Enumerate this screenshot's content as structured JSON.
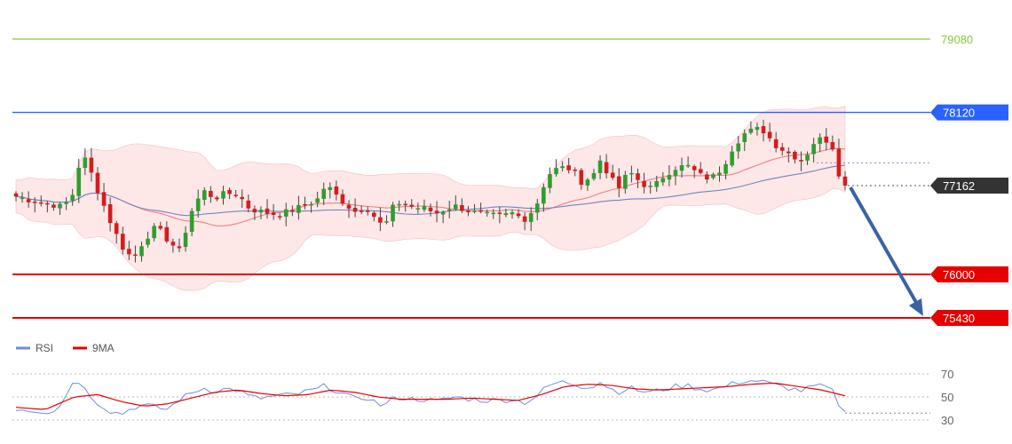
{
  "chart_data": [
    {
      "type": "candlestick",
      "ylim": [
        75300,
        79300
      ],
      "levels": [
        {
          "value": 79080,
          "label": "79080",
          "color": "#8cc63f",
          "style": "plain"
        },
        {
          "value": 78120,
          "label": "78120",
          "color": "#2962ff",
          "style": "tag"
        },
        {
          "value": 76000,
          "label": "76000",
          "color": "#e60000",
          "style": "tag"
        },
        {
          "value": 75430,
          "label": "75430",
          "color": "#e60000",
          "style": "tag"
        }
      ],
      "last_price": {
        "value": 77162,
        "label": "77162",
        "color": "#333333"
      },
      "reference_price": 77460,
      "forecast_arrow": {
        "from": 77162,
        "to": 75430,
        "color": "#3a62a5"
      },
      "candles_count": 133,
      "close_path": [
        [
          0,
          77020
        ],
        [
          3,
          76960
        ],
        [
          6,
          76920
        ],
        [
          8,
          76880
        ],
        [
          10,
          77080
        ],
        [
          11,
          77520
        ],
        [
          12,
          77500
        ],
        [
          14,
          77100
        ],
        [
          16,
          76720
        ],
        [
          18,
          76380
        ],
        [
          20,
          76200
        ],
        [
          22,
          76460
        ],
        [
          24,
          76620
        ],
        [
          26,
          76450
        ],
        [
          28,
          76300
        ],
        [
          30,
          76820
        ],
        [
          32,
          77100
        ],
        [
          34,
          77000
        ],
        [
          36,
          77060
        ],
        [
          38,
          77050
        ],
        [
          40,
          76860
        ],
        [
          42,
          76820
        ],
        [
          45,
          76780
        ],
        [
          48,
          76860
        ],
        [
          50,
          76920
        ],
        [
          52,
          77000
        ],
        [
          53,
          77180
        ],
        [
          55,
          77020
        ],
        [
          58,
          76820
        ],
        [
          60,
          76880
        ],
        [
          62,
          76700
        ],
        [
          63,
          76600
        ],
        [
          65,
          76950
        ],
        [
          68,
          76880
        ],
        [
          70,
          76860
        ],
        [
          72,
          76800
        ],
        [
          75,
          76900
        ],
        [
          78,
          76820
        ],
        [
          80,
          76780
        ],
        [
          83,
          76760
        ],
        [
          85,
          76800
        ],
        [
          87,
          76720
        ],
        [
          89,
          76880
        ],
        [
          91,
          77300
        ],
        [
          93,
          77400
        ],
        [
          95,
          77380
        ],
        [
          97,
          77200
        ],
        [
          99,
          77320
        ],
        [
          100,
          77500
        ],
        [
          102,
          77250
        ],
        [
          103,
          77100
        ],
        [
          105,
          77350
        ],
        [
          107,
          77200
        ],
        [
          109,
          77120
        ],
        [
          111,
          77300
        ],
        [
          113,
          77400
        ],
        [
          115,
          77420
        ],
        [
          117,
          77300
        ],
        [
          119,
          77250
        ],
        [
          121,
          77400
        ],
        [
          123,
          77700
        ],
        [
          125,
          77860
        ],
        [
          127,
          77900
        ],
        [
          128,
          77880
        ],
        [
          130,
          77700
        ],
        [
          132,
          77600
        ],
        [
          134,
          77520
        ],
        [
          135,
          77460
        ],
        [
          136,
          77700
        ],
        [
          138,
          77780
        ],
        [
          139,
          77750
        ],
        [
          140,
          77650
        ],
        [
          141,
          77300
        ],
        [
          142,
          77162
        ]
      ],
      "bollinger": {
        "fill": "#fde3e3",
        "edge": "#f5b5b5"
      },
      "ma_lines": [
        {
          "color": "#f08080"
        },
        {
          "color": "#6f87bf"
        }
      ]
    },
    {
      "type": "line",
      "legend": [
        {
          "name": "RSI",
          "color": "#6d8fd6"
        },
        {
          "name": "9MA",
          "color": "#e60000"
        }
      ],
      "ylim": [
        25,
        75
      ],
      "yticks": [
        70,
        50,
        30
      ],
      "rsi_path": [
        [
          0,
          40
        ],
        [
          3,
          38
        ],
        [
          6,
          37
        ],
        [
          8,
          45
        ],
        [
          10,
          66
        ],
        [
          11,
          63
        ],
        [
          12,
          55
        ],
        [
          14,
          45
        ],
        [
          16,
          38
        ],
        [
          18,
          35
        ],
        [
          20,
          41
        ],
        [
          22,
          43
        ],
        [
          24,
          41
        ],
        [
          26,
          39
        ],
        [
          28,
          48
        ],
        [
          30,
          53
        ],
        [
          32,
          58
        ],
        [
          34,
          55
        ],
        [
          36,
          57
        ],
        [
          38,
          56
        ],
        [
          40,
          50
        ],
        [
          42,
          49
        ],
        [
          45,
          51
        ],
        [
          48,
          52
        ],
        [
          50,
          55
        ],
        [
          52,
          57
        ],
        [
          53,
          60
        ],
        [
          55,
          55
        ],
        [
          58,
          48
        ],
        [
          60,
          50
        ],
        [
          62,
          44
        ],
        [
          63,
          42
        ],
        [
          65,
          50
        ],
        [
          68,
          48
        ],
        [
          70,
          48
        ],
        [
          72,
          46
        ],
        [
          75,
          50
        ],
        [
          78,
          48
        ],
        [
          80,
          47
        ],
        [
          83,
          47
        ],
        [
          85,
          48
        ],
        [
          87,
          45
        ],
        [
          89,
          50
        ],
        [
          91,
          59
        ],
        [
          93,
          63
        ],
        [
          95,
          62
        ],
        [
          97,
          59
        ],
        [
          99,
          60
        ],
        [
          100,
          63
        ],
        [
          102,
          57
        ],
        [
          103,
          54
        ],
        [
          105,
          58
        ],
        [
          107,
          55
        ],
        [
          109,
          54
        ],
        [
          111,
          57
        ],
        [
          113,
          59
        ],
        [
          115,
          60
        ],
        [
          117,
          57
        ],
        [
          119,
          56
        ],
        [
          121,
          58
        ],
        [
          123,
          62
        ],
        [
          125,
          64
        ],
        [
          127,
          64
        ],
        [
          128,
          63
        ],
        [
          130,
          60
        ],
        [
          132,
          58
        ],
        [
          134,
          56
        ],
        [
          135,
          55
        ],
        [
          136,
          59
        ],
        [
          138,
          59
        ],
        [
          139,
          58
        ],
        [
          140,
          54
        ],
        [
          141,
          43
        ],
        [
          142,
          36
        ]
      ],
      "ma_path": [
        [
          0,
          41
        ],
        [
          5,
          39
        ],
        [
          10,
          50
        ],
        [
          14,
          52
        ],
        [
          18,
          46
        ],
        [
          22,
          42
        ],
        [
          26,
          44
        ],
        [
          30,
          49
        ],
        [
          34,
          54
        ],
        [
          38,
          56
        ],
        [
          42,
          53
        ],
        [
          46,
          51
        ],
        [
          50,
          52
        ],
        [
          54,
          56
        ],
        [
          58,
          54
        ],
        [
          62,
          50
        ],
        [
          66,
          48
        ],
        [
          70,
          48
        ],
        [
          74,
          48
        ],
        [
          78,
          49
        ],
        [
          82,
          48
        ],
        [
          86,
          47
        ],
        [
          90,
          52
        ],
        [
          94,
          59
        ],
        [
          98,
          61
        ],
        [
          102,
          60
        ],
        [
          106,
          57
        ],
        [
          110,
          56
        ],
        [
          114,
          57
        ],
        [
          118,
          58
        ],
        [
          122,
          59
        ],
        [
          126,
          61
        ],
        [
          130,
          62
        ],
        [
          134,
          59
        ],
        [
          138,
          56
        ],
        [
          142,
          51
        ]
      ],
      "last_rsi_value": 36
    }
  ]
}
